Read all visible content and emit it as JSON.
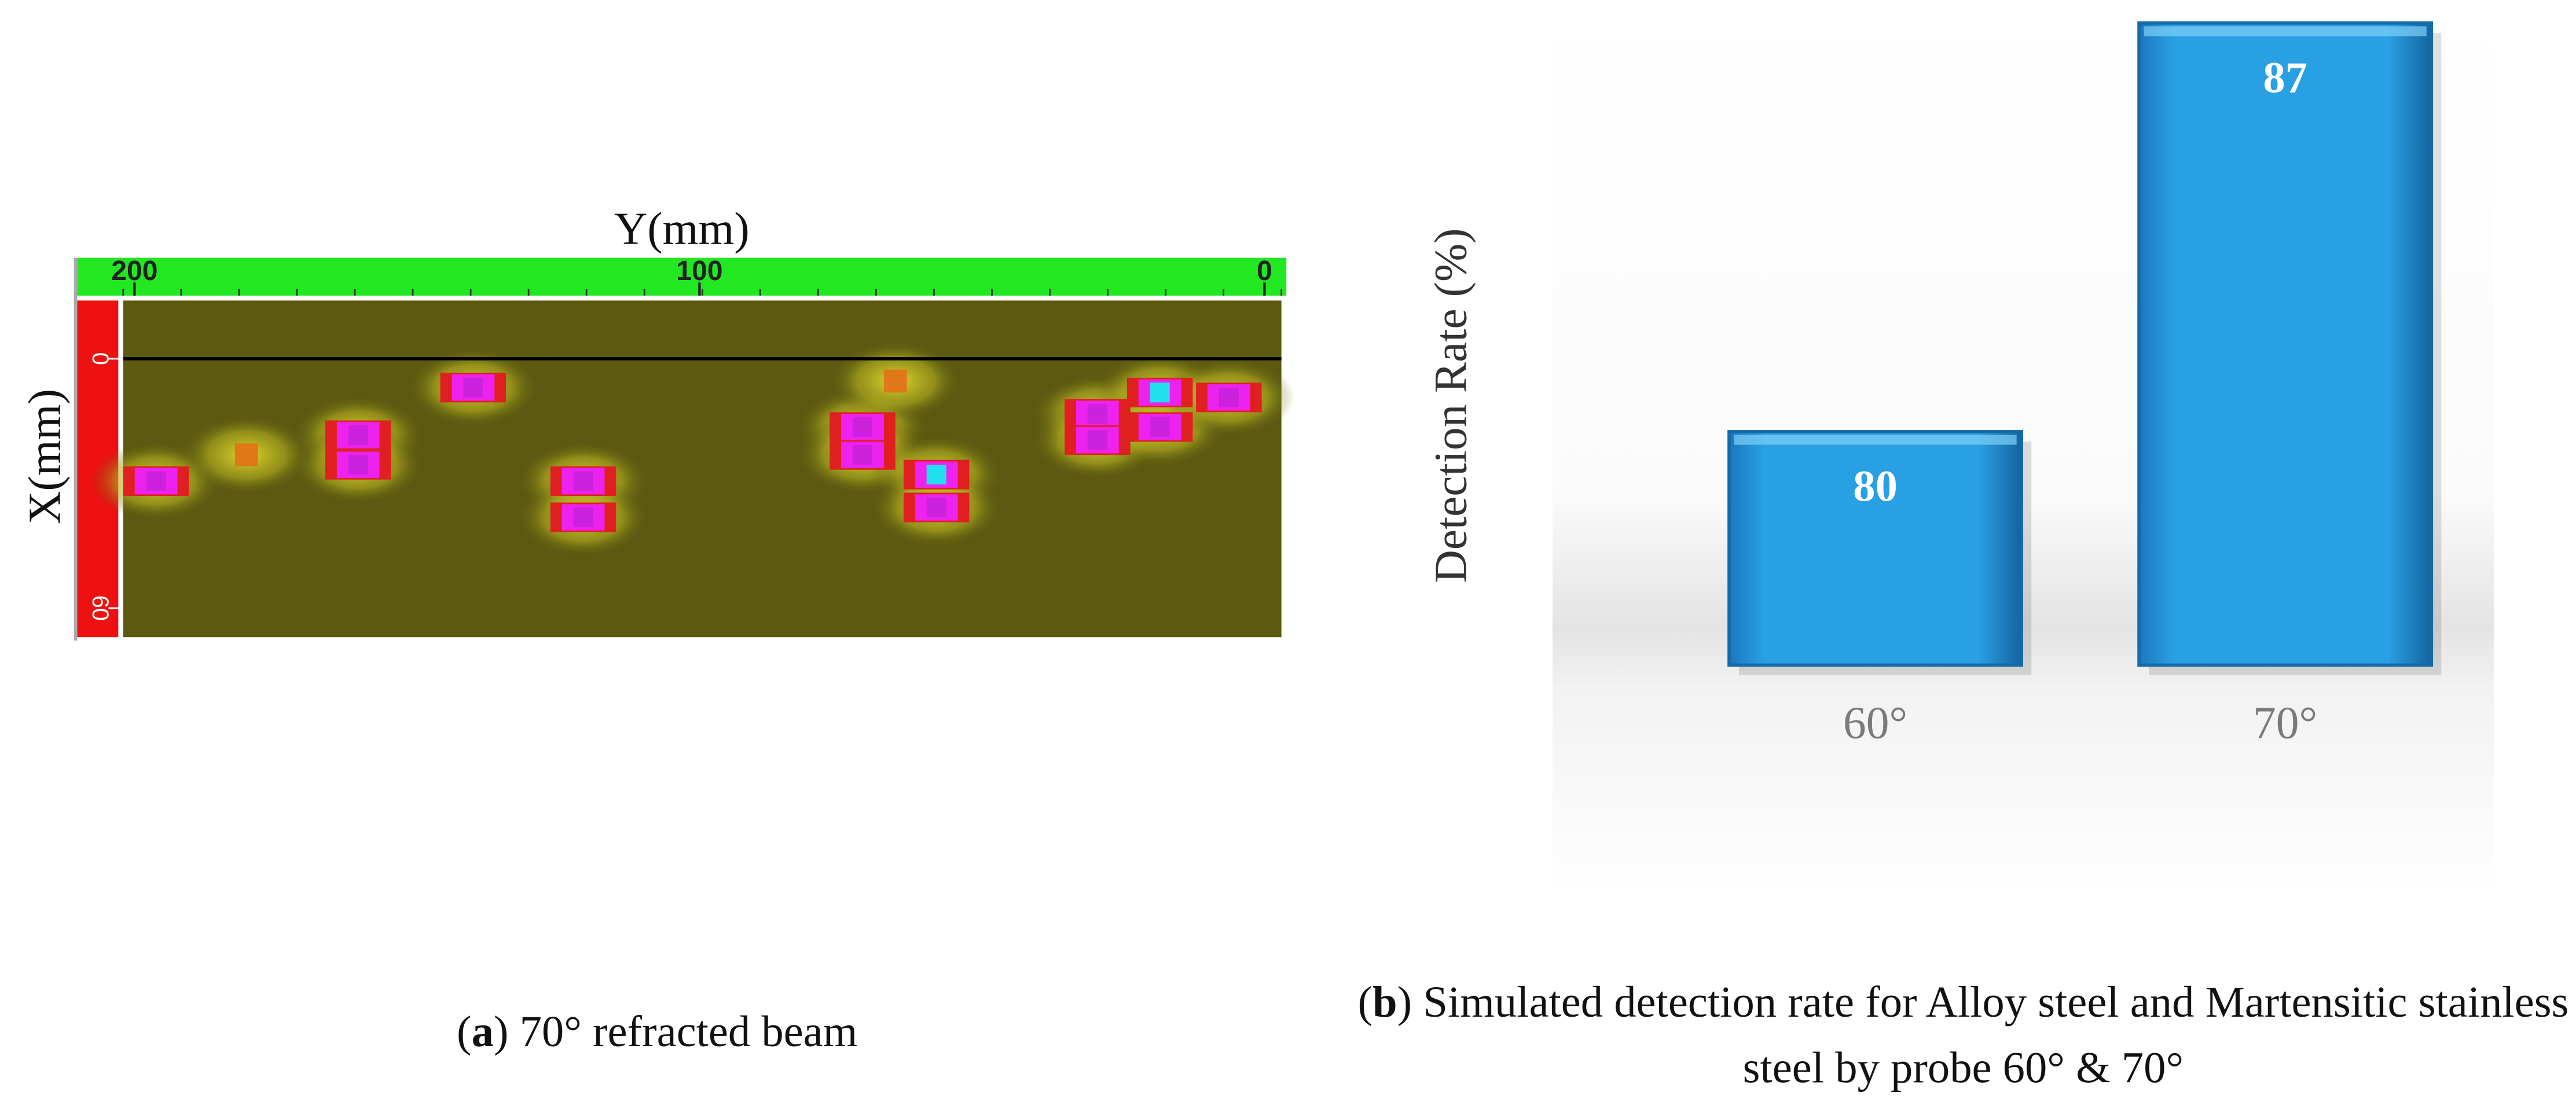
{
  "chart_data": [
    {
      "type": "scan",
      "x_label": "Y(mm)",
      "y_label": "X(mm)",
      "xlim": [
        202,
        -3
      ],
      "xticks": [
        200,
        100,
        0
      ],
      "ylim": [
        -14,
        67
      ],
      "yticks": [
        0,
        60
      ],
      "caption": [
        "(",
        "a",
        ") 70° refracted beam"
      ]
    },
    {
      "type": "bar",
      "y_label": "Detection Rate (%)",
      "categories": [
        "60°",
        "70°"
      ],
      "values": [
        80,
        87
      ],
      "ylim": [
        76,
        87
      ],
      "color": "#2196dc",
      "caption": [
        "(",
        "b",
        ") Simulated detection rate for Alloy steel and Martensitic stainless steel by probe 60° & 70°"
      ]
    }
  ]
}
